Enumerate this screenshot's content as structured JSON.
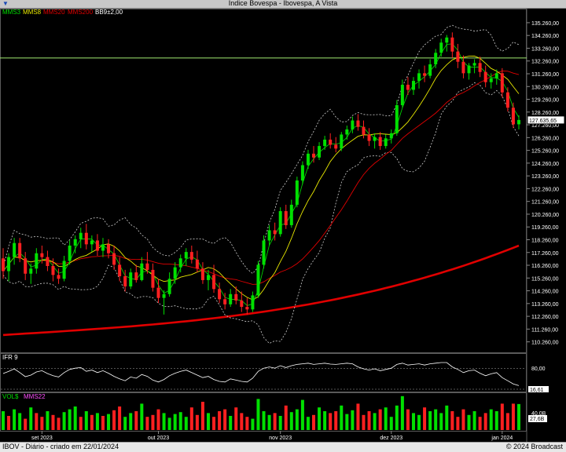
{
  "window": {
    "title": "Indice Bovespa - Ibovespa, A Vista"
  },
  "legend": {
    "mms3": {
      "label": "MMS3",
      "color": "#00e000"
    },
    "mms8": {
      "label": "MMS8",
      "color": "#e8e800"
    },
    "mms20": {
      "label": "MMS20",
      "color": "#e00000"
    },
    "mms200": {
      "label": "MMS200",
      "color": "#e00000"
    },
    "bb": {
      "label": "BB9±2,00",
      "color": "#ffffff"
    }
  },
  "ifr": {
    "label": "IFR 9",
    "ticks": [
      "80,00"
    ],
    "value_label": "16,61"
  },
  "vol": {
    "label": "VOL$",
    "sub_label": "MMS22",
    "ticks": [
      "40,0B"
    ],
    "value_label": "27,6B"
  },
  "footer": {
    "left": "IBOV - Diário - criado em 22/01/2024",
    "right": "© 2024 Broadcast"
  },
  "price_axis": {
    "labels": [
      "135.260,00",
      "134.260,00",
      "133.260,00",
      "132.260,00",
      "131.260,00",
      "130.260,00",
      "129.260,00",
      "128.260,00",
      "127.260,00",
      "126.260,00",
      "125.260,00",
      "124.260,00",
      "123.260,00",
      "122.260,00",
      "121.260,00",
      "120.260,00",
      "119.260,00",
      "118.260,00",
      "117.260,00",
      "116.260,00",
      "115.260,00",
      "114.260,00",
      "113.260,00",
      "112.260,00",
      "111.260,00",
      "110.260,00"
    ],
    "last_value_label": "127.635,65",
    "reference_line": 132.5
  },
  "time_axis": {
    "labels": [
      "set 2023",
      "out 2023",
      "nov 2023",
      "dez 2023",
      "jan 2024"
    ]
  },
  "chart_data": {
    "type": "candlestick",
    "unit": "thousand points",
    "ylim": [
      109.5,
      136.3
    ],
    "series_mms200": {
      "start": 110.8,
      "end": 117.8
    },
    "candles": [
      {
        "o": 116.8,
        "h": 117.6,
        "l": 115.2,
        "c": 115.8
      },
      {
        "o": 115.8,
        "h": 117.2,
        "l": 115.0,
        "c": 116.9
      },
      {
        "o": 116.9,
        "h": 118.4,
        "l": 116.3,
        "c": 118.0
      },
      {
        "o": 118.0,
        "h": 118.4,
        "l": 116.5,
        "c": 116.8
      },
      {
        "o": 116.8,
        "h": 117.3,
        "l": 115.1,
        "c": 115.6
      },
      {
        "o": 115.6,
        "h": 116.4,
        "l": 114.8,
        "c": 116.0
      },
      {
        "o": 116.0,
        "h": 117.6,
        "l": 115.6,
        "c": 117.2
      },
      {
        "o": 117.2,
        "h": 117.8,
        "l": 116.4,
        "c": 116.9
      },
      {
        "o": 116.9,
        "h": 117.4,
        "l": 115.8,
        "c": 116.2
      },
      {
        "o": 116.2,
        "h": 116.8,
        "l": 115.0,
        "c": 115.5
      },
      {
        "o": 115.5,
        "h": 116.0,
        "l": 114.8,
        "c": 115.2
      },
      {
        "o": 115.2,
        "h": 117.0,
        "l": 115.0,
        "c": 116.6
      },
      {
        "o": 116.6,
        "h": 118.2,
        "l": 116.3,
        "c": 117.8
      },
      {
        "o": 117.8,
        "h": 118.6,
        "l": 117.2,
        "c": 118.3
      },
      {
        "o": 118.3,
        "h": 119.2,
        "l": 117.6,
        "c": 118.8
      },
      {
        "o": 118.8,
        "h": 119.5,
        "l": 117.5,
        "c": 117.9
      },
      {
        "o": 117.9,
        "h": 118.6,
        "l": 117.3,
        "c": 118.2
      },
      {
        "o": 118.2,
        "h": 118.7,
        "l": 117.0,
        "c": 117.4
      },
      {
        "o": 117.4,
        "h": 118.4,
        "l": 116.9,
        "c": 117.9
      },
      {
        "o": 117.9,
        "h": 118.3,
        "l": 116.8,
        "c": 117.2
      },
      {
        "o": 117.2,
        "h": 117.8,
        "l": 115.9,
        "c": 116.3
      },
      {
        "o": 116.3,
        "h": 116.9,
        "l": 115.0,
        "c": 115.4
      },
      {
        "o": 115.4,
        "h": 115.9,
        "l": 114.2,
        "c": 114.6
      },
      {
        "o": 114.6,
        "h": 116.0,
        "l": 114.4,
        "c": 115.7
      },
      {
        "o": 115.7,
        "h": 116.3,
        "l": 114.9,
        "c": 115.1
      },
      {
        "o": 115.1,
        "h": 116.9,
        "l": 115.0,
        "c": 116.4
      },
      {
        "o": 116.4,
        "h": 117.3,
        "l": 115.6,
        "c": 115.9
      },
      {
        "o": 115.9,
        "h": 116.4,
        "l": 114.2,
        "c": 114.5
      },
      {
        "o": 114.5,
        "h": 115.2,
        "l": 113.3,
        "c": 113.7
      },
      {
        "o": 113.7,
        "h": 114.3,
        "l": 112.4,
        "c": 114.0
      },
      {
        "o": 114.0,
        "h": 115.7,
        "l": 113.8,
        "c": 115.2
      },
      {
        "o": 115.2,
        "h": 116.5,
        "l": 114.8,
        "c": 116.1
      },
      {
        "o": 116.1,
        "h": 117.1,
        "l": 115.7,
        "c": 116.8
      },
      {
        "o": 116.8,
        "h": 117.6,
        "l": 116.2,
        "c": 117.3
      },
      {
        "o": 117.3,
        "h": 117.8,
        "l": 116.4,
        "c": 116.7
      },
      {
        "o": 116.7,
        "h": 117.4,
        "l": 115.7,
        "c": 116.0
      },
      {
        "o": 116.0,
        "h": 116.5,
        "l": 114.8,
        "c": 115.1
      },
      {
        "o": 115.1,
        "h": 115.9,
        "l": 114.3,
        "c": 115.5
      },
      {
        "o": 115.5,
        "h": 116.3,
        "l": 114.1,
        "c": 114.4
      },
      {
        "o": 114.4,
        "h": 114.9,
        "l": 113.3,
        "c": 113.6
      },
      {
        "o": 113.6,
        "h": 114.1,
        "l": 112.8,
        "c": 113.2
      },
      {
        "o": 113.2,
        "h": 114.4,
        "l": 113.0,
        "c": 114.0
      },
      {
        "o": 114.0,
        "h": 114.6,
        "l": 113.2,
        "c": 113.5
      },
      {
        "o": 113.5,
        "h": 114.2,
        "l": 112.6,
        "c": 113.0
      },
      {
        "o": 113.0,
        "h": 113.7,
        "l": 112.4,
        "c": 112.8
      },
      {
        "o": 112.8,
        "h": 114.2,
        "l": 112.6,
        "c": 113.9
      },
      {
        "o": 113.9,
        "h": 116.6,
        "l": 113.7,
        "c": 116.3
      },
      {
        "o": 116.3,
        "h": 118.6,
        "l": 116.0,
        "c": 118.2
      },
      {
        "o": 118.2,
        "h": 119.4,
        "l": 117.8,
        "c": 119.0
      },
      {
        "o": 119.0,
        "h": 119.6,
        "l": 118.2,
        "c": 118.7
      },
      {
        "o": 118.7,
        "h": 120.8,
        "l": 118.5,
        "c": 120.5
      },
      {
        "o": 120.5,
        "h": 121.0,
        "l": 119.1,
        "c": 119.4
      },
      {
        "o": 119.4,
        "h": 121.4,
        "l": 119.2,
        "c": 121.0
      },
      {
        "o": 121.0,
        "h": 123.2,
        "l": 120.8,
        "c": 122.9
      },
      {
        "o": 122.9,
        "h": 124.4,
        "l": 122.6,
        "c": 124.1
      },
      {
        "o": 124.1,
        "h": 125.3,
        "l": 123.8,
        "c": 125.0
      },
      {
        "o": 125.0,
        "h": 125.6,
        "l": 124.3,
        "c": 124.7
      },
      {
        "o": 124.7,
        "h": 125.9,
        "l": 124.5,
        "c": 125.6
      },
      {
        "o": 125.6,
        "h": 126.4,
        "l": 125.3,
        "c": 126.1
      },
      {
        "o": 126.1,
        "h": 126.6,
        "l": 125.4,
        "c": 125.7
      },
      {
        "o": 125.7,
        "h": 126.3,
        "l": 125.1,
        "c": 125.4
      },
      {
        "o": 125.4,
        "h": 126.7,
        "l": 125.2,
        "c": 126.5
      },
      {
        "o": 126.5,
        "h": 127.2,
        "l": 126.1,
        "c": 126.9
      },
      {
        "o": 126.9,
        "h": 127.9,
        "l": 126.6,
        "c": 127.6
      },
      {
        "o": 127.6,
        "h": 128.1,
        "l": 126.8,
        "c": 127.1
      },
      {
        "o": 127.1,
        "h": 127.6,
        "l": 126.2,
        "c": 126.5
      },
      {
        "o": 126.5,
        "h": 127.0,
        "l": 125.6,
        "c": 126.0
      },
      {
        "o": 126.0,
        "h": 126.6,
        "l": 125.4,
        "c": 126.3
      },
      {
        "o": 126.3,
        "h": 126.7,
        "l": 125.3,
        "c": 125.6
      },
      {
        "o": 125.6,
        "h": 126.5,
        "l": 125.4,
        "c": 126.2
      },
      {
        "o": 126.2,
        "h": 126.9,
        "l": 125.8,
        "c": 126.6
      },
      {
        "o": 126.6,
        "h": 129.2,
        "l": 126.4,
        "c": 128.8
      },
      {
        "o": 128.8,
        "h": 130.8,
        "l": 128.6,
        "c": 130.4
      },
      {
        "o": 130.4,
        "h": 131.0,
        "l": 129.6,
        "c": 130.0
      },
      {
        "o": 130.0,
        "h": 131.0,
        "l": 129.6,
        "c": 130.7
      },
      {
        "o": 130.7,
        "h": 131.6,
        "l": 130.1,
        "c": 131.3
      },
      {
        "o": 131.3,
        "h": 131.9,
        "l": 130.6,
        "c": 131.1
      },
      {
        "o": 131.1,
        "h": 132.4,
        "l": 130.9,
        "c": 132.0
      },
      {
        "o": 132.0,
        "h": 133.2,
        "l": 131.7,
        "c": 132.9
      },
      {
        "o": 132.9,
        "h": 134.0,
        "l": 132.6,
        "c": 133.7
      },
      {
        "o": 133.7,
        "h": 134.3,
        "l": 133.0,
        "c": 134.1
      },
      {
        "o": 134.1,
        "h": 134.5,
        "l": 132.5,
        "c": 133.0
      },
      {
        "o": 133.0,
        "h": 133.6,
        "l": 131.7,
        "c": 132.2
      },
      {
        "o": 132.2,
        "h": 132.7,
        "l": 130.9,
        "c": 131.3
      },
      {
        "o": 131.3,
        "h": 132.1,
        "l": 130.8,
        "c": 131.9
      },
      {
        "o": 131.9,
        "h": 132.4,
        "l": 131.3,
        "c": 132.1
      },
      {
        "o": 132.1,
        "h": 132.6,
        "l": 131.0,
        "c": 131.4
      },
      {
        "o": 131.4,
        "h": 131.9,
        "l": 130.2,
        "c": 130.6
      },
      {
        "o": 130.6,
        "h": 131.3,
        "l": 130.1,
        "c": 130.9
      },
      {
        "o": 130.9,
        "h": 131.6,
        "l": 130.4,
        "c": 131.3
      },
      {
        "o": 131.3,
        "h": 131.7,
        "l": 129.4,
        "c": 129.8
      },
      {
        "o": 129.8,
        "h": 130.2,
        "l": 128.3,
        "c": 128.6
      },
      {
        "o": 128.6,
        "h": 129.0,
        "l": 127.0,
        "c": 127.3
      },
      {
        "o": 127.3,
        "h": 128.0,
        "l": 126.9,
        "c": 127.64
      }
    ],
    "ifr_values": [
      55,
      62,
      70,
      58,
      45,
      50,
      60,
      64,
      55,
      48,
      44,
      58,
      68,
      72,
      74,
      62,
      66,
      58,
      64,
      56,
      46,
      38,
      32,
      44,
      40,
      52,
      46,
      34,
      28,
      36,
      48,
      56,
      62,
      66,
      58,
      50,
      42,
      46,
      36,
      30,
      28,
      38,
      34,
      30,
      28,
      40,
      62,
      72,
      76,
      72,
      80,
      74,
      80,
      84,
      86,
      88,
      84,
      86,
      88,
      85,
      84,
      86,
      88,
      86,
      76,
      70,
      66,
      70,
      64,
      68,
      72,
      84,
      88,
      82,
      84,
      86,
      82,
      86,
      88,
      90,
      90,
      76,
      68,
      58,
      64,
      66,
      56,
      48,
      54,
      58,
      42,
      32,
      22,
      16.61
    ],
    "vol_values": [
      20,
      15,
      22,
      18,
      12,
      24,
      18,
      14,
      20,
      16,
      13,
      19,
      22,
      25,
      14,
      20,
      16,
      18,
      15,
      17,
      21,
      25,
      14,
      18,
      20,
      28,
      14,
      16,
      22,
      18,
      13,
      17,
      19,
      14,
      24,
      16,
      30,
      18,
      14,
      20,
      22,
      15,
      24,
      18,
      14,
      12,
      33,
      20,
      16,
      18,
      15,
      26,
      19,
      22,
      32,
      14,
      16,
      24,
      20,
      18,
      20,
      26,
      17,
      21,
      28,
      16,
      20,
      18,
      22,
      24,
      14,
      26,
      36,
      22,
      18,
      16,
      24,
      20,
      22,
      18,
      26,
      20,
      14,
      22,
      16,
      20,
      14,
      18,
      22,
      20,
      28,
      18,
      28,
      27.6
    ],
    "vol_up_down": [
      1,
      0,
      1,
      1,
      0,
      1,
      0,
      0,
      1,
      0,
      0,
      1,
      1,
      1,
      0,
      1,
      0,
      1,
      0,
      1,
      0,
      0,
      1,
      1,
      0,
      1,
      0,
      0,
      0,
      1,
      1,
      1,
      1,
      1,
      0,
      0,
      0,
      1,
      0,
      0,
      0,
      1,
      0,
      0,
      0,
      1,
      1,
      1,
      1,
      0,
      1,
      0,
      1,
      1,
      1,
      1,
      0,
      1,
      1,
      0,
      0,
      1,
      1,
      1,
      0,
      0,
      0,
      1,
      0,
      1,
      1,
      1,
      1,
      0,
      1,
      1,
      0,
      1,
      1,
      1,
      1,
      0,
      0,
      0,
      1,
      1,
      0,
      0,
      1,
      1,
      0,
      0,
      0,
      1
    ]
  }
}
